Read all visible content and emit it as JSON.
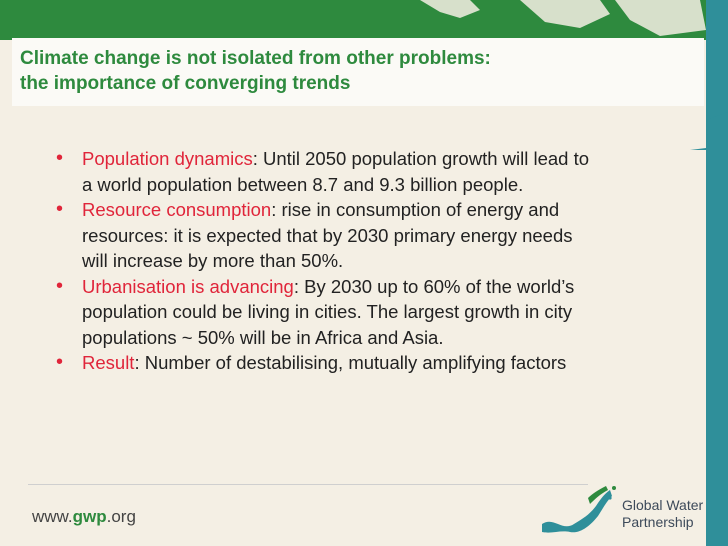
{
  "slide": {
    "title_line1": "Climate change is not isolated from other problems:",
    "title_line2": "the importance of  converging trends",
    "bullets": [
      {
        "keyword": "Population dynamics",
        "rest_line1": ": Until 2050 population growth will lead to",
        "line2": "a world population between 8.7 and 9.3 billion people."
      },
      {
        "keyword": "Resource consumption",
        "rest_line1": ": rise in consumption of energy and",
        "line2": "resources: it is expected that by 2030 primary energy needs",
        "line3": "will increase by more than 50%."
      },
      {
        "keyword": "Urbanisation is advancing",
        "rest_line1": ": By 2030 up to 60% of the world’s",
        "line2": "population could be living in cities. The largest growth in city",
        "line3": "populations ~ 50%  will be in Africa and Asia."
      },
      {
        "keyword": "Result",
        "rest_line1": ": Number of destabilising, mutually amplifying factors"
      }
    ]
  },
  "footer": {
    "url_prefix": "www.",
    "url_accent": "gwp",
    "url_suffix": ".org",
    "logo_line1": "Global Water",
    "logo_line2": "Partnership"
  },
  "colors": {
    "title_green": "#2e8a3e",
    "keyword_red": "#e0253a",
    "background": "#f4efe4",
    "accent_teal": "#2f8f9a"
  },
  "icons": {
    "bullet": "•",
    "logo": "gwp-wave-logo-icon"
  }
}
